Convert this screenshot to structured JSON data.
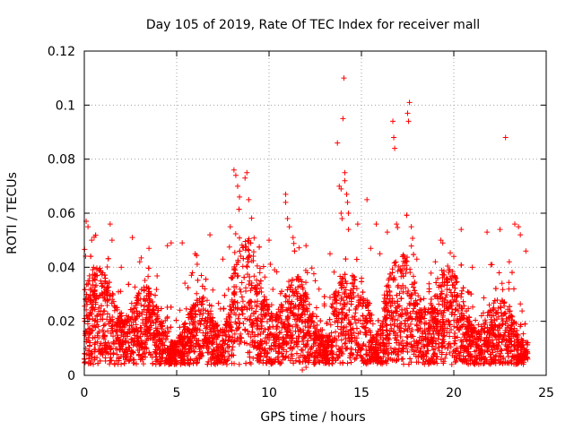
{
  "chart_data": {
    "type": "scatter",
    "title": "Day 105 of 2019, Rate Of TEC Index for receiver mall",
    "xlabel": "GPS time / hours",
    "ylabel": "ROTI / TECUs",
    "xlim": [
      0,
      25
    ],
    "ylim": [
      0,
      0.12
    ],
    "xticks": [
      0,
      5,
      10,
      15,
      20,
      25
    ],
    "xtick_labels": [
      "0",
      "5",
      "10",
      "15",
      "20",
      "25"
    ],
    "yticks": [
      0,
      0.02,
      0.04,
      0.06,
      0.08,
      0.1,
      0.12
    ],
    "ytick_labels": [
      "0",
      "0.02",
      "0.04",
      "0.06",
      "0.08",
      "0.1",
      "0.12"
    ],
    "grid": true,
    "marker": "+",
    "color": "#ff0000",
    "notes": "Dense cloud of '+' markers over 0-24 h, mostly 0.005-0.035 TECU, with spikes up to ~0.11 near 14 h.",
    "series": [
      {
        "name": "ROTI",
        "points": [
          [
            0.1,
            0.057
          ],
          [
            0.2,
            0.055
          ],
          [
            0.4,
            0.05
          ],
          [
            0.5,
            0.04
          ],
          [
            1.4,
            0.056
          ],
          [
            1.5,
            0.05
          ],
          [
            2.6,
            0.051
          ],
          [
            3.5,
            0.047
          ],
          [
            4.5,
            0.048
          ],
          [
            4.7,
            0.049
          ],
          [
            5.3,
            0.049
          ],
          [
            6.8,
            0.052
          ],
          [
            7.9,
            0.055
          ],
          [
            8.1,
            0.076
          ],
          [
            8.2,
            0.074
          ],
          [
            8.3,
            0.07
          ],
          [
            8.4,
            0.066
          ],
          [
            8.7,
            0.073
          ],
          [
            8.8,
            0.075
          ],
          [
            8.9,
            0.065
          ],
          [
            10.0,
            0.05
          ],
          [
            10.9,
            0.067
          ],
          [
            10.9,
            0.064
          ],
          [
            11.0,
            0.058
          ],
          [
            11.1,
            0.055
          ],
          [
            11.3,
            0.051
          ],
          [
            12.0,
            0.048
          ],
          [
            13.3,
            0.045
          ],
          [
            13.7,
            0.086
          ],
          [
            13.8,
            0.07
          ],
          [
            13.9,
            0.069
          ],
          [
            13.9,
            0.06
          ],
          [
            13.95,
            0.058
          ],
          [
            14.0,
            0.095
          ],
          [
            14.05,
            0.11
          ],
          [
            14.1,
            0.075
          ],
          [
            14.1,
            0.072
          ],
          [
            14.2,
            0.067
          ],
          [
            14.25,
            0.064
          ],
          [
            14.3,
            0.06
          ],
          [
            14.3,
            0.054
          ],
          [
            14.8,
            0.056
          ],
          [
            15.3,
            0.065
          ],
          [
            15.8,
            0.056
          ],
          [
            16.4,
            0.053
          ],
          [
            16.7,
            0.094
          ],
          [
            16.75,
            0.088
          ],
          [
            16.8,
            0.084
          ],
          [
            16.9,
            0.056
          ],
          [
            17.5,
            0.097
          ],
          [
            17.55,
            0.094
          ],
          [
            17.6,
            0.101
          ],
          [
            17.7,
            0.055
          ],
          [
            19.3,
            0.05
          ],
          [
            20.4,
            0.054
          ],
          [
            21.8,
            0.053
          ],
          [
            22.5,
            0.054
          ],
          [
            22.8,
            0.088
          ],
          [
            23.3,
            0.056
          ],
          [
            23.5,
            0.055
          ],
          [
            23.6,
            0.052
          ],
          [
            0.2,
            0.035
          ],
          [
            1.0,
            0.038
          ],
          [
            2.0,
            0.04
          ],
          [
            3.0,
            0.042
          ],
          [
            6.0,
            0.045
          ],
          [
            7.5,
            0.043
          ],
          [
            9.5,
            0.038
          ],
          [
            12.5,
            0.035
          ],
          [
            15.5,
            0.047
          ],
          [
            16.0,
            0.045
          ],
          [
            18.0,
            0.043
          ],
          [
            19.0,
            0.042
          ],
          [
            20.0,
            0.044
          ],
          [
            21.0,
            0.04
          ],
          [
            22.0,
            0.041
          ],
          [
            23.0,
            0.042
          ],
          [
            23.9,
            0.046
          ],
          [
            11.8,
            0.002
          ],
          [
            12.0,
            0.003
          ],
          [
            0.05,
            0.005
          ],
          [
            24.0,
            0.006
          ]
        ]
      }
    ]
  }
}
